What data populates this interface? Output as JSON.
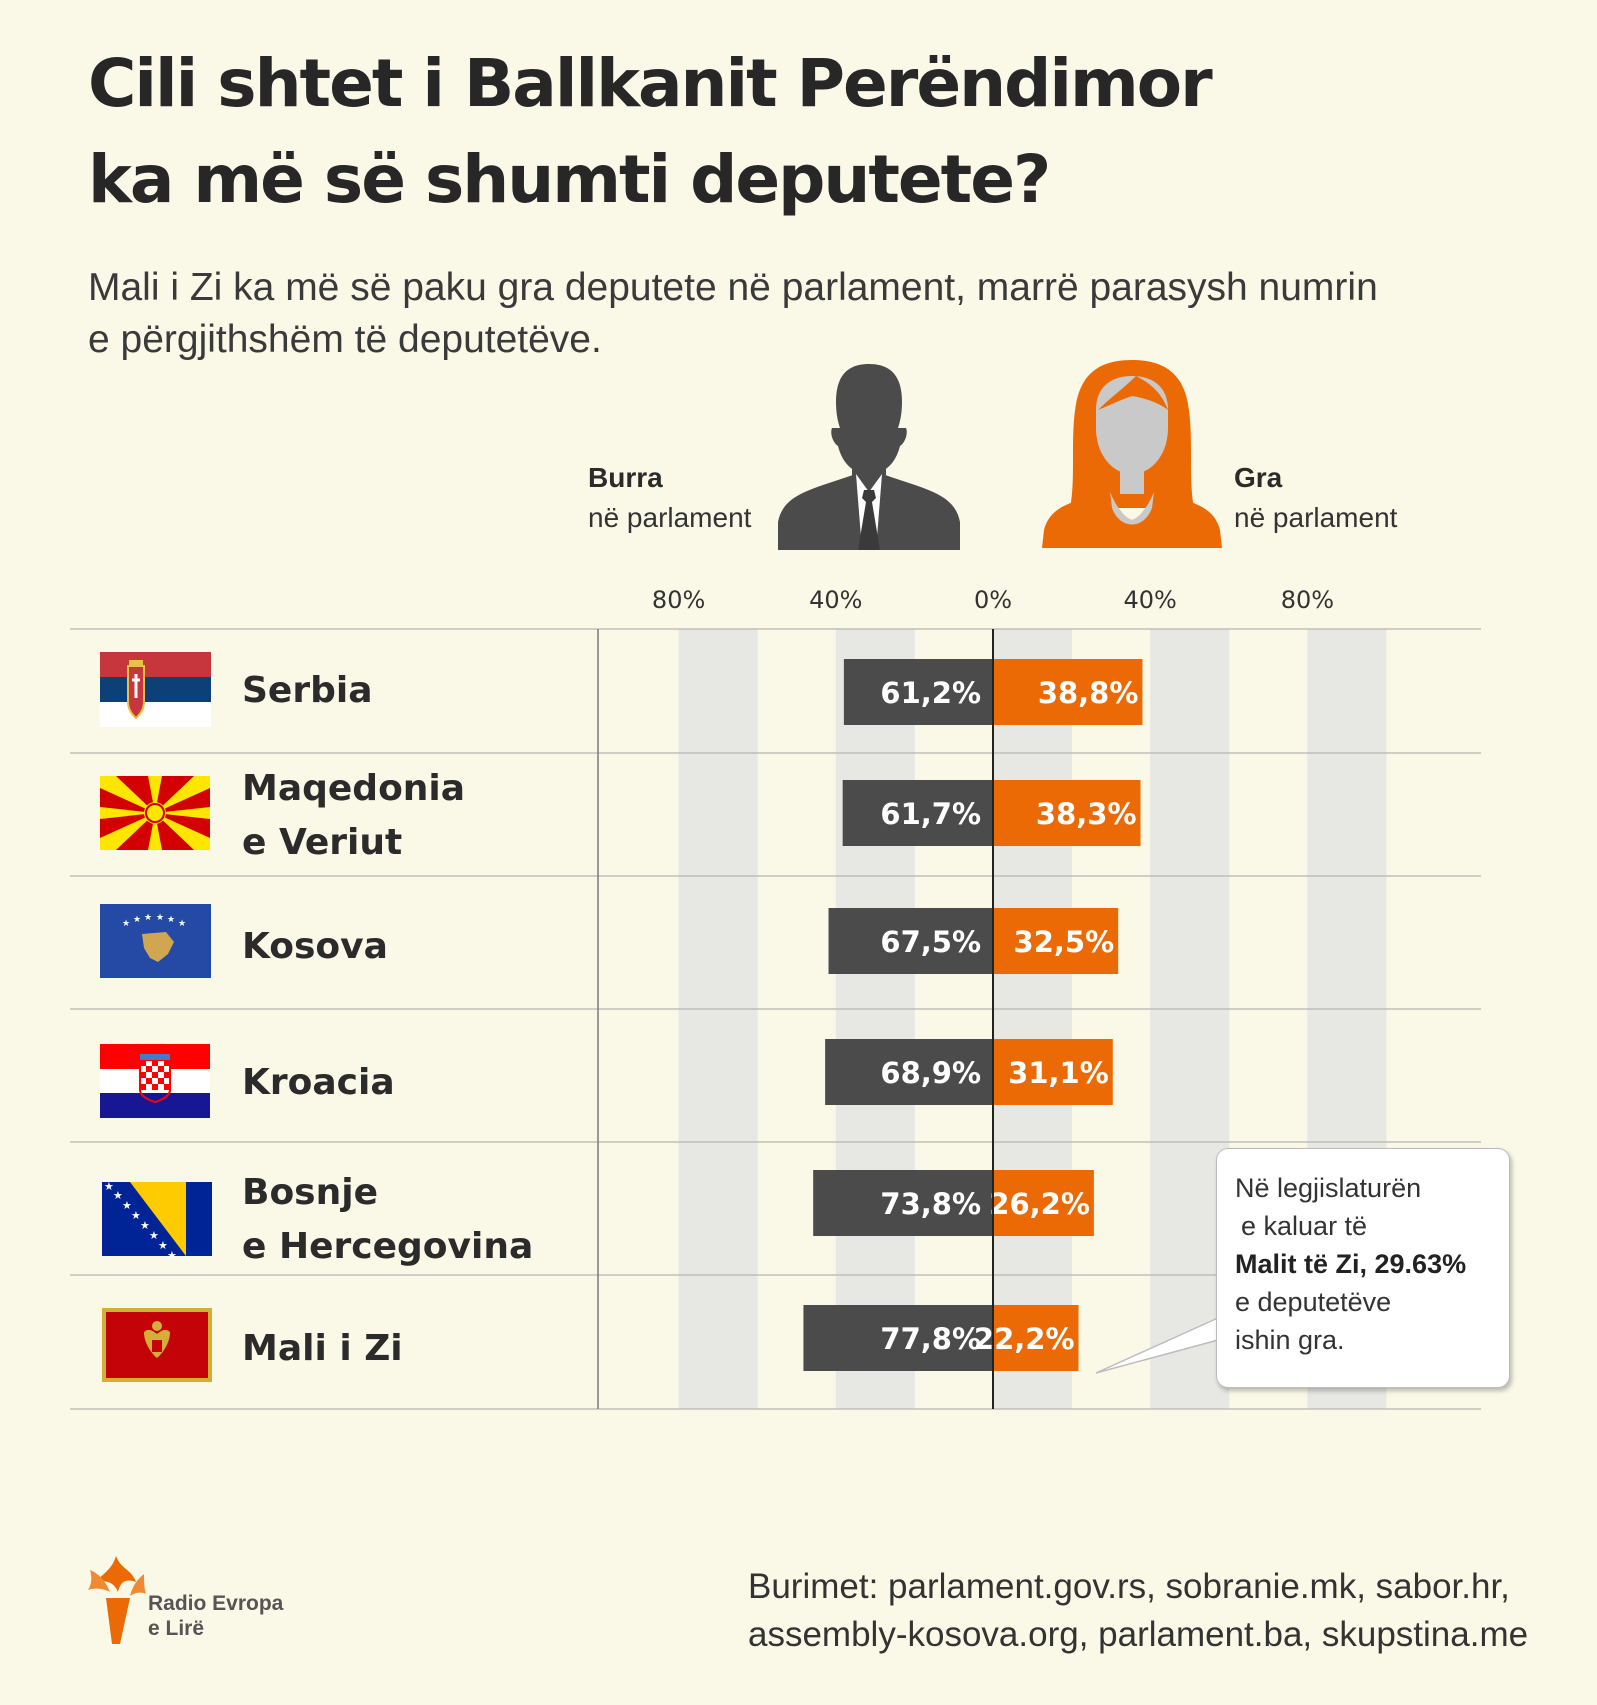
{
  "title_line1": "Cili shtet i Ballkanit Perëndimor",
  "title_line2": "ka më së shumti deputete?",
  "subtitle_line1": "Mali i Zi ka më së paku gra deputete në parlament, marrë parasysh numrin",
  "subtitle_line2": "e përgjithshëm të deputetëve.",
  "legend": {
    "men_title": "Burra",
    "men_sub": "në parlament",
    "women_title": "Gra",
    "women_sub": "në parlament"
  },
  "colors": {
    "men": "#4b4b4b",
    "women": "#ec6a05",
    "background": "#faf8e6",
    "grid_band": "#e7e7e4"
  },
  "chart_data": {
    "type": "bar",
    "orientation": "horizontal-diverging",
    "tick_labels": [
      "80%",
      "40%",
      "0%",
      "40%",
      "80%"
    ],
    "categories": [
      [
        "Serbia"
      ],
      [
        "Maqedonia",
        "e Veriut"
      ],
      [
        "Kosova"
      ],
      [
        "Kroacia"
      ],
      [
        "Bosnje",
        "e Hercegovina"
      ],
      [
        "Mali i Zi"
      ]
    ],
    "series": [
      {
        "name": "Burra",
        "values": [
          61.2,
          61.7,
          67.5,
          68.9,
          73.8,
          77.8
        ],
        "labels": [
          "61,2%",
          "61,7%",
          "67,5%",
          "68,9%",
          "73,8%",
          "77,8%"
        ]
      },
      {
        "name": "Gra",
        "values": [
          38.8,
          38.3,
          32.5,
          31.1,
          26.2,
          22.2
        ],
        "labels": [
          "38,8%",
          "38,3%",
          "32,5%",
          "31,1%",
          "26,2%",
          "22,2%"
        ]
      }
    ]
  },
  "flags": [
    "serbia-flag-icon",
    "north-macedonia-flag-icon",
    "kosovo-flag-icon",
    "croatia-flag-icon",
    "bosnia-flag-icon",
    "montenegro-flag-icon"
  ],
  "callout": {
    "line1": "Në legjislaturën",
    "line2": "e kaluar të",
    "bold": "Malit të Zi",
    "value": ", 29.63%",
    "line4": "e deputetëve",
    "line5": "ishin gra."
  },
  "logo": {
    "line1": "Radio Evropa",
    "line2": "e Lirë"
  },
  "sources_line1": "Burimet: parlament.gov.rs, sobranie.mk, sabor.hr,",
  "sources_line2": "assembly-kosova.org, parlament.ba, skupstina.me"
}
